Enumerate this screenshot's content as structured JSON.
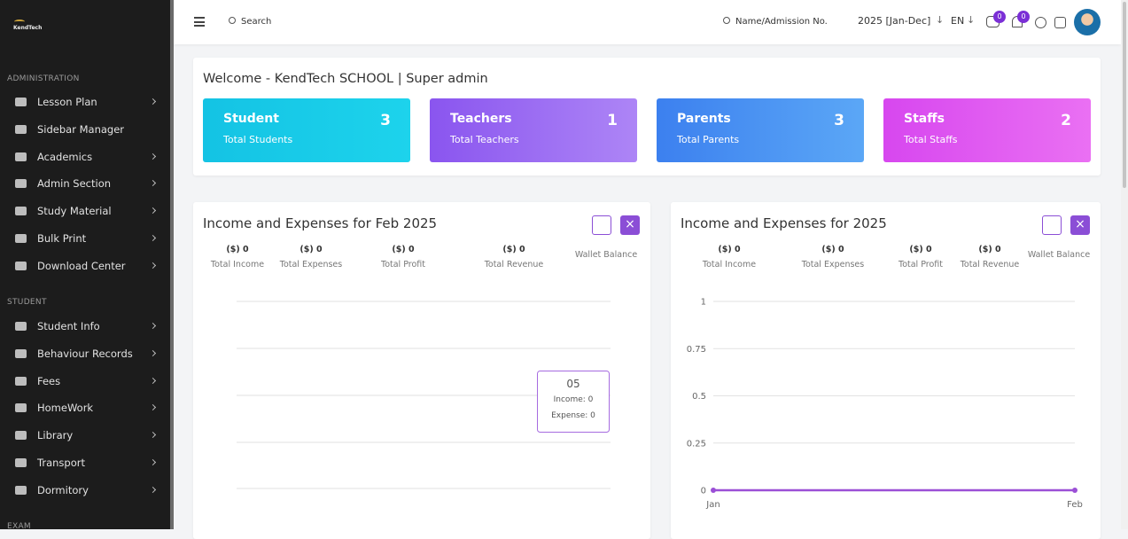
{
  "sidebar": {
    "logo": "KendTech",
    "sections": [
      {
        "heading": "ADMINISTRATION",
        "items": [
          {
            "label": "Lesson Plan",
            "submenu": true
          },
          {
            "label": "Sidebar Manager",
            "submenu": false
          },
          {
            "label": "Academics",
            "submenu": true
          },
          {
            "label": "Admin Section",
            "submenu": true
          },
          {
            "label": "Study Material",
            "submenu": true
          },
          {
            "label": "Bulk Print",
            "submenu": true
          },
          {
            "label": "Download Center",
            "submenu": true
          }
        ]
      },
      {
        "heading": "STUDENT",
        "items": [
          {
            "label": "Student Info",
            "submenu": true
          },
          {
            "label": "Behaviour Records",
            "submenu": true
          },
          {
            "label": "Fees",
            "submenu": true
          },
          {
            "label": "HomeWork",
            "submenu": true
          },
          {
            "label": "Library",
            "submenu": true
          },
          {
            "label": "Transport",
            "submenu": true
          },
          {
            "label": "Dormitory",
            "submenu": true
          }
        ]
      },
      {
        "heading": "EXAM",
        "items": []
      }
    ]
  },
  "topbar": {
    "search": "Search",
    "admission_search": "Name/Admission No.",
    "session": "2025 [Jan-Dec]",
    "language": "EN",
    "chat_count": 0,
    "notification_count": 0
  },
  "welcome": "Welcome - KendTech SCHOOL | Super admin",
  "cards": [
    {
      "title": "Student",
      "subtitle": "Total Students",
      "value": 3
    },
    {
      "title": "Teachers",
      "subtitle": "Total Teachers",
      "value": 1
    },
    {
      "title": "Parents",
      "subtitle": "Total Parents",
      "value": 3
    },
    {
      "title": "Staffs",
      "subtitle": "Total Staffs",
      "value": 2
    }
  ],
  "panels": [
    {
      "title": "Income and Expenses for Feb 2025",
      "stats": [
        {
          "value": "($) 0",
          "label": "Total Income"
        },
        {
          "value": "($) 0",
          "label": "Total Expenses"
        },
        {
          "value": "($) 0",
          "label": "Total Profit"
        },
        {
          "value": "($) 0",
          "label": "Total Revenue"
        }
      ],
      "wallet": "Wallet Balance",
      "tooltip": {
        "title": "05",
        "income": "Income: 0",
        "expense": "Expense: 0"
      }
    },
    {
      "title": "Income and Expenses for 2025",
      "stats": [
        {
          "value": "($) 0",
          "label": "Total Income"
        },
        {
          "value": "($) 0",
          "label": "Total Expenses"
        },
        {
          "value": "($) 0",
          "label": "Total Profit"
        },
        {
          "value": "($) 0",
          "label": "Total Revenue"
        }
      ],
      "wallet": "Wallet Balance",
      "chart": {
        "type": "line",
        "x": [
          "Jan",
          "Feb"
        ],
        "series": [
          {
            "color": "#9b4fd6",
            "values": [
              0,
              0
            ]
          }
        ],
        "ylim": [
          0,
          1
        ],
        "yticks": [
          0,
          0.25,
          0.5,
          0.75,
          1
        ],
        "grid": true
      }
    }
  ]
}
